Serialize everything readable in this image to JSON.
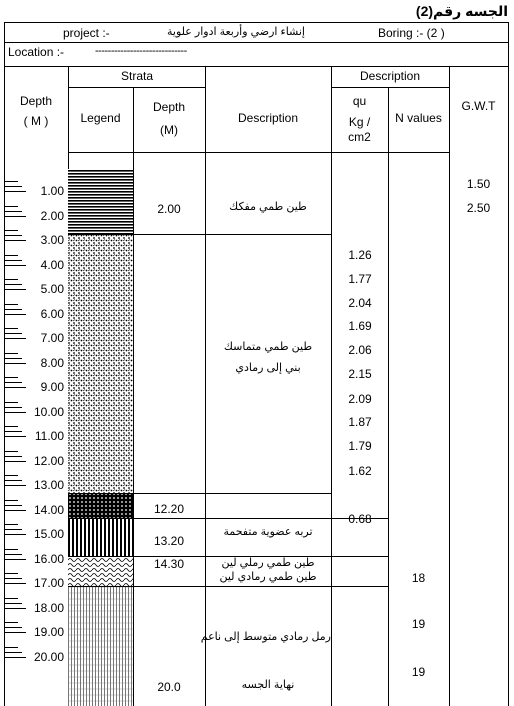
{
  "document": {
    "title": "الجسه رقم(2)",
    "project_label": "project :-",
    "project_name": "إنشاء ارضي  وأربعة ادوار علوية",
    "boring_label": "Boring :- (2 )",
    "location_label": "Location :-",
    "location_value": "-----------------------------"
  },
  "headers": {
    "depth_main": "Depth",
    "depth_main_unit": "( M )",
    "strata": "Strata",
    "legend": "Legend",
    "strata_depth": "Depth",
    "strata_depth_unit": "(M)",
    "description_col": "Description",
    "description_group": "Description",
    "qu": "qu",
    "qu_unit1": "Kg /",
    "qu_unit2": "cm2",
    "n_values": "N values",
    "gwt": "G.W.T"
  },
  "depth_scale": [
    "1.00",
    "2.00",
    "3.00",
    "4.00",
    "5.00",
    "6.00",
    "7.00",
    "8.00",
    "9.00",
    "10.00",
    "11.00",
    "12.00",
    "13.00",
    "14.00",
    "15.00",
    "16.00",
    "17.00",
    "18.00",
    "19.00",
    "20.00"
  ],
  "layers": [
    {
      "pattern": "horizontal-lines",
      "depth_label": "2.00",
      "description": [
        "طين  طمي مفكك"
      ]
    },
    {
      "pattern": "dotted-fill",
      "depth_label": "",
      "description": [
        "طين طمي متماسك",
        "بني إلى رمادي"
      ]
    },
    {
      "pattern": "dense-cross",
      "depth_label": "12.20",
      "description": []
    },
    {
      "pattern": "vertical-lines",
      "depth_label": "13.20",
      "description": [
        "تربه عضوية متفحمة"
      ]
    },
    {
      "pattern": "wavy-fill",
      "depth_label": "14.30",
      "description": [
        "طين طمي رملي لين",
        "طين طمي رمادي لين"
      ]
    },
    {
      "pattern": "fine-vertical",
      "depth_label": "20.0",
      "description": [
        "رمل رمادي متوسط إلى ناعم",
        "نهاية الجسه"
      ]
    }
  ],
  "qu_values": [
    "1.26",
    "1.77",
    "2.04",
    "1.69",
    "2.06",
    "2.15",
    "2.09",
    "1.87",
    "1.79",
    "1.62",
    "0.68"
  ],
  "n_values": [
    "18",
    "19",
    "19"
  ],
  "gwt_values": [
    "1.50",
    "2.50"
  ]
}
